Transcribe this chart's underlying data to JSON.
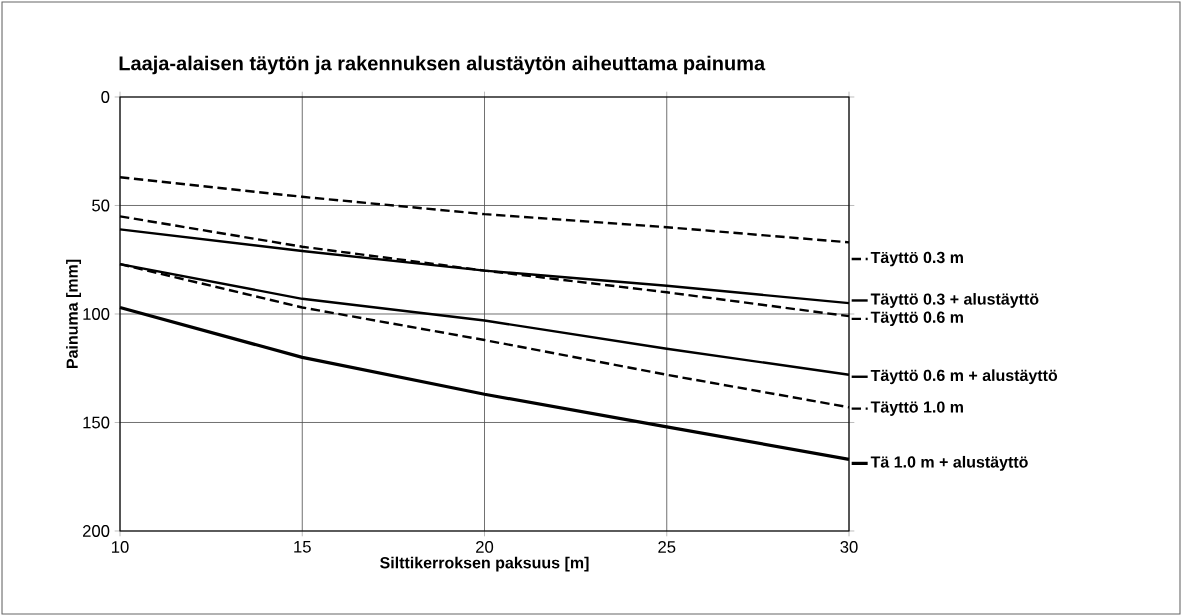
{
  "chart_data": {
    "type": "line",
    "title": "Laaja-alaisen täytön ja rakennuksen alustäytön aiheuttama painuma",
    "xlabel": "Silttikerroksen paksuus [m]",
    "ylabel": "Painuma [mm]",
    "x": [
      10,
      15,
      20,
      25,
      30
    ],
    "xlim": [
      10,
      30
    ],
    "xticks": [
      10,
      15,
      20,
      25,
      30
    ],
    "ylim": [
      200,
      0
    ],
    "yticks": [
      0,
      50,
      100,
      150,
      200
    ],
    "grid": true,
    "legend": "right",
    "marker": "none",
    "series": [
      {
        "name": "Täyttö 0.3 m",
        "color": "#000000",
        "line_style": "dashed",
        "values": [
          37,
          46,
          54,
          60,
          67
        ]
      },
      {
        "name": "Täyttö 0.3 + alustäyttö",
        "color": "#000000",
        "line_style": "solid",
        "values": [
          61,
          71,
          80,
          87,
          95
        ]
      },
      {
        "name": "Täyttö 0.6 m",
        "color": "#000000",
        "line_style": "dashed",
        "values": [
          55,
          69,
          80,
          90,
          101
        ]
      },
      {
        "name": "Täyttö 0.6 m + alustäyttö",
        "color": "#000000",
        "line_style": "solid",
        "values": [
          77,
          93,
          103,
          116,
          128
        ]
      },
      {
        "name": "Täyttö 1.0 m",
        "color": "#000000",
        "line_style": "dashed",
        "values": [
          77,
          97,
          112,
          128,
          143
        ]
      },
      {
        "name": "Tä 1.0 m + alustäyttö",
        "color": "#000000",
        "line_style": "solid",
        "values": [
          97,
          120,
          137,
          152,
          167
        ]
      }
    ]
  }
}
